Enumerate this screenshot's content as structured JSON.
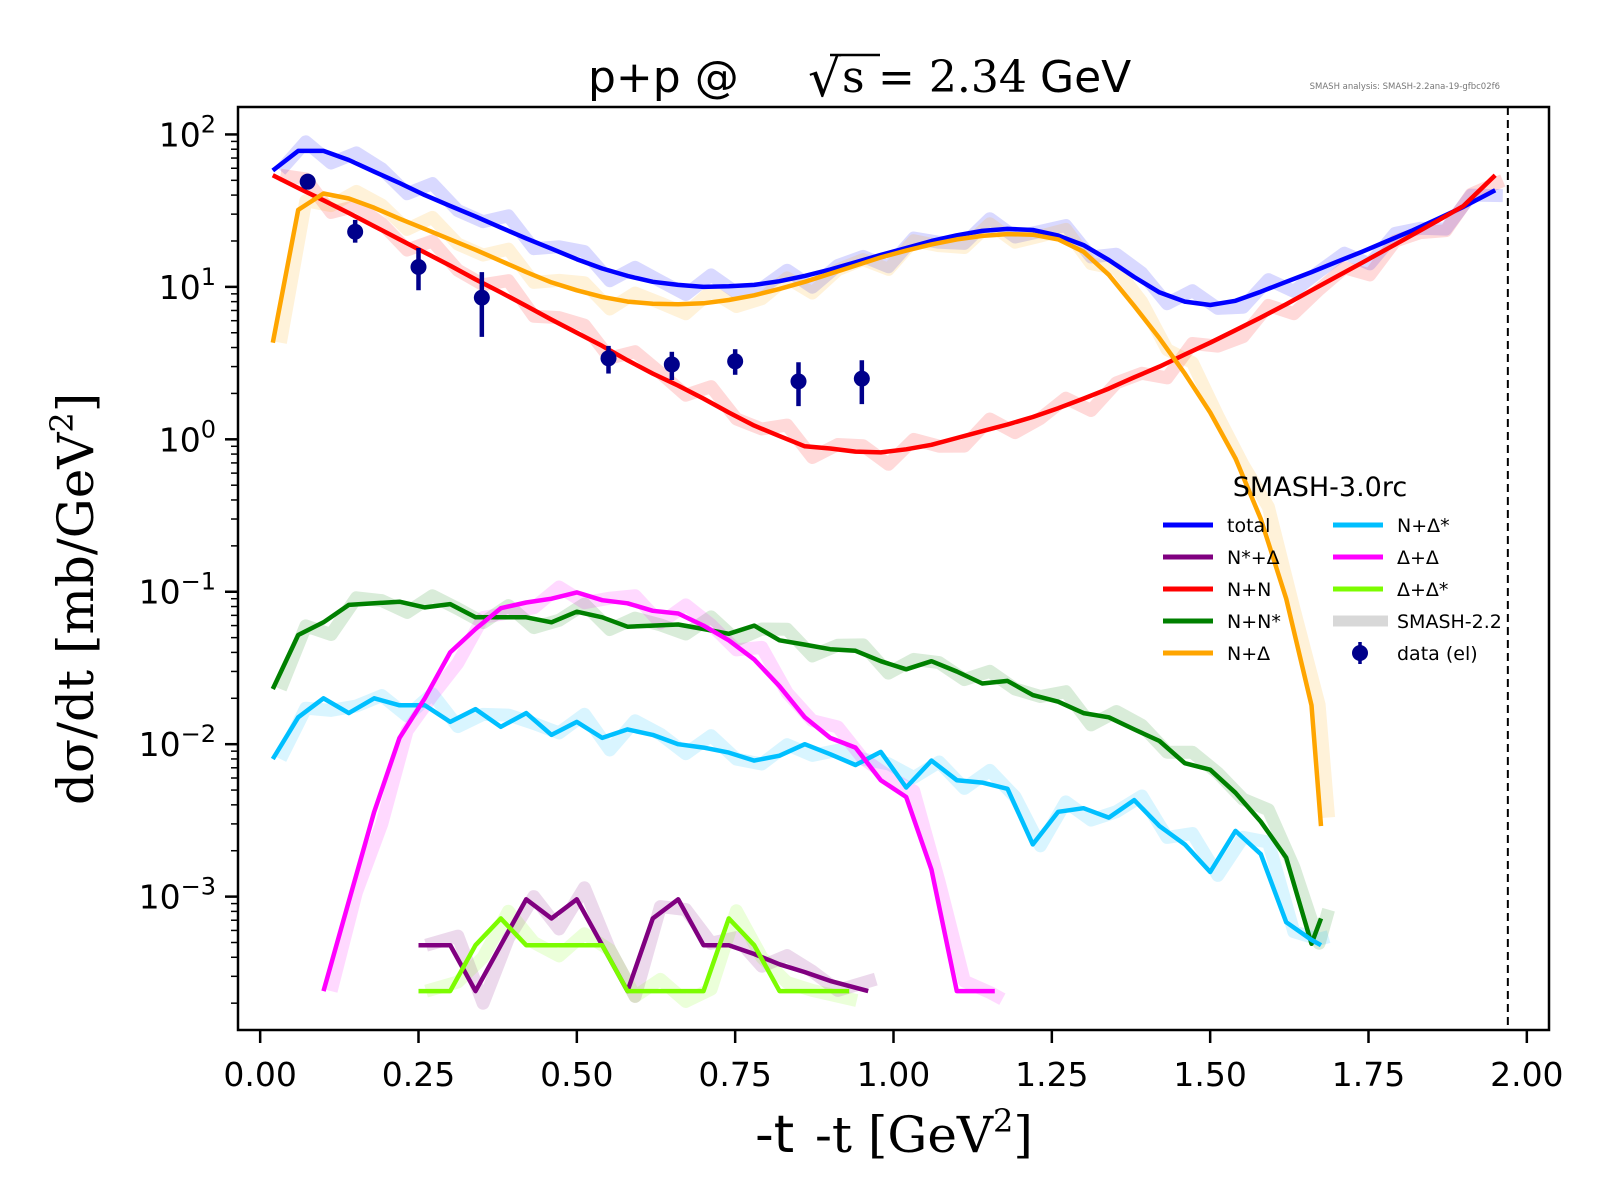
{
  "chart_data": {
    "type": "line",
    "title": {
      "prefix": "p+p @ ",
      "sqrt_symbol": "√",
      "radicand": "s",
      "equals_value": "= 2.34",
      "unit": " GeV"
    },
    "annotation": "SMASH analysis: SMASH-2.2ana-19-gfbc02f6",
    "xlabel": {
      "main": "-t [GeV",
      "sup": "2",
      "close": "]"
    },
    "ylabel": {
      "main": "dσ/dt [mb/GeV",
      "sup": "2",
      "close": "]"
    },
    "xlim": [
      -0.035,
      2.035
    ],
    "ylim_log10": [
      -3.875,
      2.18
    ],
    "xscale": "linear",
    "yscale": "log",
    "grid": false,
    "x_ticks": [
      {
        "value": 0.0,
        "label": "0.00"
      },
      {
        "value": 0.25,
        "label": "0.25"
      },
      {
        "value": 0.5,
        "label": "0.50"
      },
      {
        "value": 0.75,
        "label": "0.75"
      },
      {
        "value": 1.0,
        "label": "1.00"
      },
      {
        "value": 1.25,
        "label": "1.25"
      },
      {
        "value": 1.5,
        "label": "1.50"
      },
      {
        "value": 1.75,
        "label": "1.75"
      },
      {
        "value": 2.0,
        "label": "2.00"
      }
    ],
    "y_ticks": [
      {
        "exp": 2,
        "base": "10",
        "sup": "2"
      },
      {
        "exp": 1,
        "base": "10",
        "sup": "1"
      },
      {
        "exp": 0,
        "base": "10",
        "sup": "0"
      },
      {
        "exp": -1,
        "base": "10",
        "sup": "−1"
      },
      {
        "exp": -2,
        "base": "10",
        "sup": "−2"
      },
      {
        "exp": -3,
        "base": "10",
        "sup": "−3"
      }
    ],
    "kinematic_limit_x": 1.97,
    "legend": {
      "title": "SMASH-3.0rc",
      "placement": "center-right",
      "columns": 2,
      "entries": [
        {
          "label": "total",
          "key": "total",
          "kind": "line"
        },
        {
          "label": "N*+Δ",
          "key": "nstar_delta",
          "kind": "line"
        },
        {
          "label": "N+N",
          "key": "nn",
          "kind": "line"
        },
        {
          "label": "N+N*",
          "key": "n_nstar",
          "kind": "line"
        },
        {
          "label": "N+Δ",
          "key": "n_delta",
          "kind": "line"
        },
        {
          "label": "N+Δ*",
          "key": "n_deltastar",
          "kind": "line"
        },
        {
          "label": "Δ+Δ",
          "key": "delta_delta",
          "kind": "line"
        },
        {
          "label": "Δ+Δ*",
          "key": "delta_deltastar",
          "kind": "line"
        },
        {
          "label": "SMASH-2.2",
          "key": "smash22",
          "kind": "band"
        },
        {
          "label": "data (el)",
          "key": "data",
          "kind": "marker"
        }
      ]
    },
    "series": [
      {
        "name": "total",
        "key": "total",
        "color": "#0000ff",
        "x": [
          0.02,
          0.06,
          0.1,
          0.14,
          0.18,
          0.22,
          0.26,
          0.3,
          0.34,
          0.38,
          0.42,
          0.46,
          0.5,
          0.54,
          0.58,
          0.62,
          0.66,
          0.7,
          0.74,
          0.78,
          0.82,
          0.86,
          0.9,
          0.94,
          0.98,
          1.02,
          1.06,
          1.1,
          1.14,
          1.18,
          1.22,
          1.26,
          1.3,
          1.34,
          1.38,
          1.42,
          1.46,
          1.5,
          1.54,
          1.58,
          1.62,
          1.66,
          1.7,
          1.74,
          1.78,
          1.82,
          1.86,
          1.9,
          1.95
        ],
        "y": [
          58,
          78,
          78,
          68,
          57,
          48,
          40,
          34,
          29,
          24.5,
          20.8,
          17.8,
          15.2,
          13.2,
          11.8,
          10.8,
          10.3,
          10.0,
          10.1,
          10.3,
          10.9,
          11.8,
          13.0,
          14.5,
          16.2,
          18.0,
          20.0,
          21.8,
          23.3,
          24.0,
          23.6,
          21.7,
          18.8,
          15.0,
          11.6,
          9.2,
          8.0,
          7.6,
          8.1,
          9.3,
          10.8,
          12.5,
          14.6,
          17.0,
          20.0,
          23.5,
          28.0,
          33.5,
          43.0
        ]
      },
      {
        "name": "N+N",
        "key": "nn",
        "color": "#ff0000",
        "x": [
          0.02,
          0.06,
          0.1,
          0.14,
          0.18,
          0.22,
          0.26,
          0.3,
          0.34,
          0.38,
          0.42,
          0.46,
          0.5,
          0.54,
          0.58,
          0.62,
          0.66,
          0.7,
          0.74,
          0.78,
          0.82,
          0.86,
          0.9,
          0.94,
          0.98,
          1.02,
          1.06,
          1.1,
          1.14,
          1.18,
          1.22,
          1.26,
          1.3,
          1.34,
          1.38,
          1.42,
          1.46,
          1.5,
          1.54,
          1.58,
          1.62,
          1.66,
          1.7,
          1.74,
          1.78,
          1.82,
          1.86,
          1.9,
          1.95
        ],
        "y": [
          54,
          44.5,
          37,
          30.5,
          25,
          20.5,
          16.8,
          13.8,
          11.2,
          9.2,
          7.5,
          6.1,
          5.0,
          4.1,
          3.3,
          2.7,
          2.25,
          1.85,
          1.5,
          1.23,
          1.05,
          0.9,
          0.87,
          0.83,
          0.82,
          0.86,
          0.92,
          1.02,
          1.13,
          1.25,
          1.4,
          1.6,
          1.85,
          2.15,
          2.55,
          3.0,
          3.6,
          4.3,
          5.2,
          6.3,
          7.7,
          9.5,
          11.7,
          14.4,
          17.8,
          22.0,
          27.3,
          34.0,
          54.0
        ]
      },
      {
        "name": "N+Δ",
        "key": "n_delta",
        "color": "#ffa500",
        "x": [
          0.02,
          0.06,
          0.1,
          0.14,
          0.18,
          0.22,
          0.26,
          0.3,
          0.34,
          0.38,
          0.42,
          0.46,
          0.5,
          0.54,
          0.58,
          0.62,
          0.66,
          0.7,
          0.74,
          0.78,
          0.82,
          0.86,
          0.9,
          0.94,
          0.98,
          1.02,
          1.06,
          1.1,
          1.14,
          1.18,
          1.22,
          1.26,
          1.3,
          1.34,
          1.38,
          1.42,
          1.46,
          1.5,
          1.54,
          1.58,
          1.62,
          1.66,
          1.675
        ],
        "y": [
          4.3,
          32,
          41,
          38,
          33,
          28,
          24,
          20.5,
          17.5,
          14.8,
          12.5,
          10.7,
          9.5,
          8.6,
          8.0,
          7.75,
          7.7,
          7.8,
          8.2,
          8.8,
          9.7,
          10.8,
          12.2,
          13.8,
          15.6,
          17.3,
          19.0,
          20.5,
          21.6,
          22.2,
          22.0,
          20.5,
          17.0,
          12.0,
          7.5,
          4.6,
          2.7,
          1.5,
          0.75,
          0.3,
          0.09,
          0.018,
          0.0029
        ]
      },
      {
        "name": "N+N*",
        "key": "n_nstar",
        "color": "#008000",
        "x": [
          0.02,
          0.06,
          0.1,
          0.14,
          0.18,
          0.22,
          0.26,
          0.3,
          0.34,
          0.38,
          0.42,
          0.46,
          0.5,
          0.54,
          0.58,
          0.62,
          0.66,
          0.7,
          0.74,
          0.78,
          0.82,
          0.86,
          0.9,
          0.94,
          0.98,
          1.02,
          1.06,
          1.1,
          1.14,
          1.18,
          1.22,
          1.26,
          1.3,
          1.34,
          1.38,
          1.42,
          1.46,
          1.5,
          1.54,
          1.58,
          1.62,
          1.66,
          1.675
        ],
        "y": [
          0.023,
          0.052,
          0.063,
          0.082,
          0.084,
          0.086,
          0.079,
          0.083,
          0.068,
          0.068,
          0.068,
          0.063,
          0.074,
          0.068,
          0.059,
          0.06,
          0.061,
          0.057,
          0.053,
          0.06,
          0.048,
          0.045,
          0.042,
          0.041,
          0.035,
          0.031,
          0.035,
          0.03,
          0.025,
          0.026,
          0.021,
          0.019,
          0.016,
          0.015,
          0.0125,
          0.0105,
          0.0075,
          0.0068,
          0.0048,
          0.0031,
          0.0018,
          0.00049,
          0.00072
        ]
      },
      {
        "name": "N+Δ*",
        "key": "n_deltastar",
        "color": "#00bfff",
        "x": [
          0.02,
          0.06,
          0.1,
          0.14,
          0.18,
          0.22,
          0.26,
          0.3,
          0.34,
          0.38,
          0.42,
          0.46,
          0.5,
          0.54,
          0.58,
          0.62,
          0.66,
          0.7,
          0.74,
          0.78,
          0.82,
          0.86,
          0.9,
          0.94,
          0.98,
          1.02,
          1.06,
          1.1,
          1.14,
          1.18,
          1.22,
          1.26,
          1.3,
          1.34,
          1.38,
          1.42,
          1.46,
          1.5,
          1.54,
          1.58,
          1.62,
          1.66,
          1.675
        ],
        "y": [
          0.008,
          0.015,
          0.02,
          0.016,
          0.02,
          0.018,
          0.018,
          0.014,
          0.017,
          0.013,
          0.016,
          0.0115,
          0.014,
          0.011,
          0.0125,
          0.0115,
          0.01,
          0.0095,
          0.0088,
          0.0078,
          0.0084,
          0.01,
          0.0086,
          0.0073,
          0.0089,
          0.0052,
          0.0078,
          0.0058,
          0.0056,
          0.0051,
          0.0022,
          0.0036,
          0.0038,
          0.0033,
          0.0043,
          0.0029,
          0.0022,
          0.00145,
          0.0027,
          0.0019,
          0.00068,
          0.00052,
          0.00048
        ]
      },
      {
        "name": "Δ+Δ",
        "key": "delta_delta",
        "color": "#ff00ff",
        "x": [
          0.1,
          0.14,
          0.18,
          0.22,
          0.26,
          0.3,
          0.34,
          0.38,
          0.42,
          0.46,
          0.5,
          0.54,
          0.58,
          0.62,
          0.66,
          0.7,
          0.74,
          0.78,
          0.82,
          0.86,
          0.9,
          0.94,
          0.98,
          1.02,
          1.06,
          1.1,
          1.14,
          1.16
        ],
        "y": [
          0.00024,
          0.00093,
          0.0036,
          0.011,
          0.02,
          0.04,
          0.057,
          0.078,
          0.085,
          0.09,
          0.099,
          0.088,
          0.084,
          0.075,
          0.072,
          0.06,
          0.048,
          0.036,
          0.024,
          0.015,
          0.011,
          0.0095,
          0.0058,
          0.0045,
          0.0015,
          0.00024,
          0.00024,
          0.00024
        ]
      },
      {
        "name": "N*+Δ",
        "key": "nstar_delta",
        "color": "#800080",
        "x": [
          0.25,
          0.3,
          0.34,
          0.38,
          0.42,
          0.46,
          0.5,
          0.54,
          0.58,
          0.62,
          0.66,
          0.7,
          0.74,
          0.78,
          0.82,
          0.86,
          0.9,
          0.96
        ],
        "y": [
          0.00048,
          0.00048,
          0.00024,
          0.00048,
          0.00096,
          0.00072,
          0.00096,
          0.00048,
          0.00024,
          0.00072,
          0.00096,
          0.00048,
          0.00048,
          0.00042,
          0.00036,
          0.00032,
          0.00028,
          0.00024
        ]
      },
      {
        "name": "Δ+Δ*",
        "key": "delta_deltastar",
        "color": "#7cfc00",
        "x": [
          0.25,
          0.3,
          0.34,
          0.38,
          0.42,
          0.46,
          0.5,
          0.54,
          0.58,
          0.62,
          0.66,
          0.7,
          0.74,
          0.78,
          0.82,
          0.86,
          0.93
        ],
        "y": [
          0.00024,
          0.00024,
          0.00048,
          0.00072,
          0.00048,
          0.00048,
          0.00048,
          0.00048,
          0.00024,
          0.00024,
          0.00024,
          0.00024,
          0.00072,
          0.00048,
          0.00024,
          0.00024,
          0.00024
        ]
      }
    ],
    "reference_series": {
      "name": "SMASH-2.2",
      "note": "faint thick translucent bands in each channel color, closely following the SMASH-3.0rc curves",
      "opacity": 0.15
    },
    "data_points": {
      "name": "data (el)",
      "color": "#00008b",
      "points": [
        {
          "x": 0.075,
          "y": 49,
          "ylo": 49,
          "yhi": 49
        },
        {
          "x": 0.15,
          "y": 23,
          "ylo": 19.5,
          "yhi": 27.5
        },
        {
          "x": 0.25,
          "y": 13.5,
          "ylo": 9.5,
          "yhi": 18
        },
        {
          "x": 0.35,
          "y": 8.5,
          "ylo": 4.7,
          "yhi": 12.5
        },
        {
          "x": 0.55,
          "y": 3.4,
          "ylo": 2.7,
          "yhi": 4.1
        },
        {
          "x": 0.65,
          "y": 3.1,
          "ylo": 2.45,
          "yhi": 3.75
        },
        {
          "x": 0.75,
          "y": 3.25,
          "ylo": 2.65,
          "yhi": 3.9
        },
        {
          "x": 0.85,
          "y": 2.4,
          "ylo": 1.65,
          "yhi": 3.2
        },
        {
          "x": 0.95,
          "y": 2.5,
          "ylo": 1.7,
          "yhi": 3.3
        }
      ]
    }
  }
}
